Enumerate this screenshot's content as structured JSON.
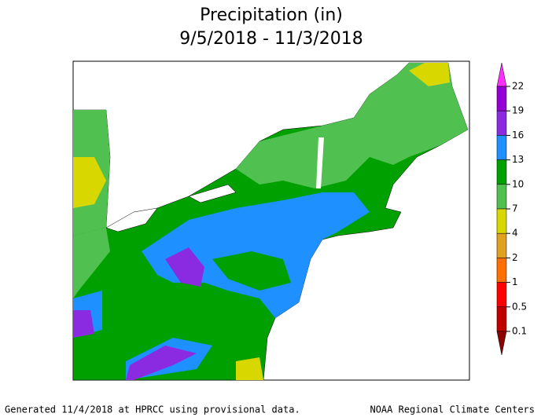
{
  "title": "Precipitation (in)",
  "subtitle": "9/5/2018 - 11/3/2018",
  "legend": {
    "top_color": "#ff30ff",
    "levels": [
      {
        "label": "22",
        "color": "#9400d3"
      },
      {
        "label": "19",
        "color": "#8a2be2"
      },
      {
        "label": "16",
        "color": "#1e90ff"
      },
      {
        "label": "13",
        "color": "#00a000"
      },
      {
        "label": "10",
        "color": "#50c050"
      },
      {
        "label": "7",
        "color": "#d8d800"
      },
      {
        "label": "4",
        "color": "#e0a020"
      },
      {
        "label": "2",
        "color": "#ff7000"
      },
      {
        "label": "1",
        "color": "#ff0000"
      },
      {
        "label": "0.5",
        "color": "#c00000"
      },
      {
        "label": "0.1",
        "color": "#8b0000"
      }
    ]
  },
  "footer": {
    "left": "Generated 11/4/2018 at HPRCC using provisional data.",
    "right": "NOAA Regional Climate Centers"
  }
}
